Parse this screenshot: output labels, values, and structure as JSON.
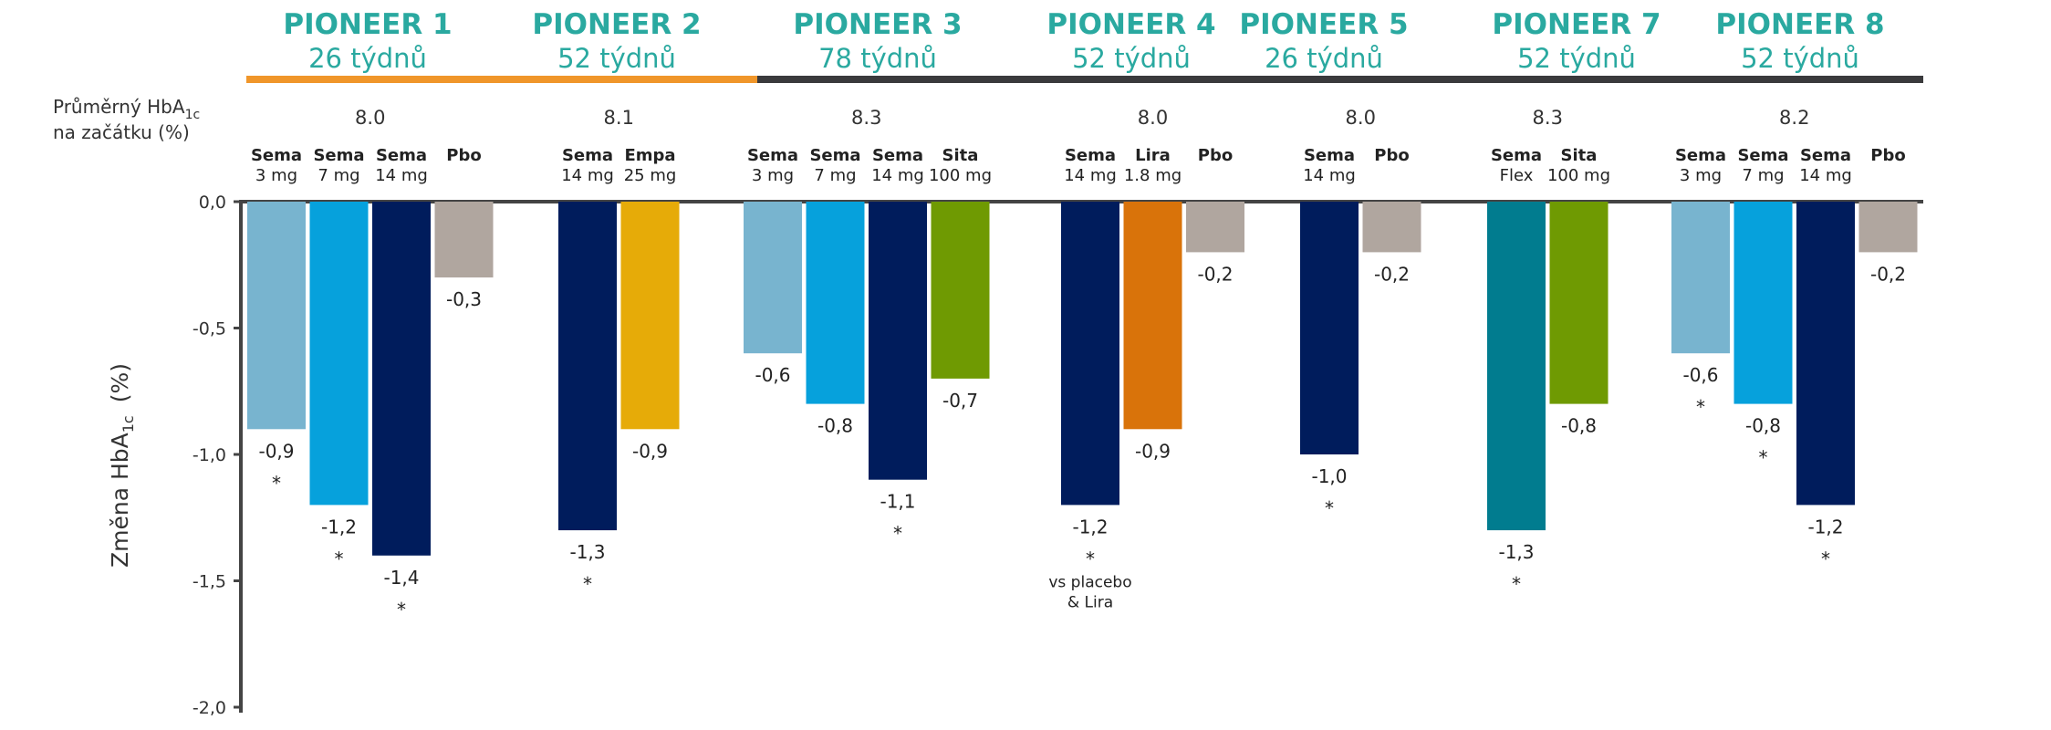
{
  "chart_data": {
    "type": "bar",
    "title": "",
    "xlabel": "",
    "ylabel": "Změna HbA1c (%)",
    "ylabel_parts": {
      "main": "Změna HbA",
      "sub": "1c",
      "unit": "(%)"
    },
    "ylim": [
      -2.0,
      0.0
    ],
    "yticks": [
      0.0,
      -0.5,
      -1.0,
      -1.5,
      -2.0
    ],
    "ytick_labels": [
      "0,0",
      "-0,5",
      "-1,0",
      "-1,5",
      "-2,0"
    ],
    "baseline_label": {
      "line1_main": "Průměrný HbA",
      "line1_sub": "1c",
      "line2": "na začátku (%)"
    },
    "colors": {
      "title": "#2aa9a0",
      "orange_bar": "#f0962a",
      "dark_bar": "#3a3a3c",
      "sema3": "#78b4cf",
      "sema7": "#06a1dc",
      "sema14": "#001c5c",
      "pbo": "#b0a69f",
      "empa": "#e6ab08",
      "sita": "#6f9a02",
      "lira": "#d9730a",
      "flex": "#017c8f"
    },
    "groups": [
      {
        "title": "PIONEER 1",
        "duration": "26 týdnů",
        "baseline": "8.0",
        "note": "",
        "arms": [
          {
            "name": "Sema",
            "dose": "3 mg",
            "value": -0.9,
            "label": "-0,9",
            "sig": "*",
            "color": "sema3"
          },
          {
            "name": "Sema",
            "dose": "7 mg",
            "value": -1.2,
            "label": "-1,2",
            "sig": "*",
            "color": "sema7"
          },
          {
            "name": "Sema",
            "dose": "14 mg",
            "value": -1.4,
            "label": "-1,4",
            "sig": "*",
            "color": "sema14"
          },
          {
            "name": "Pbo",
            "dose": "",
            "value": -0.3,
            "label": "-0,3",
            "sig": "",
            "color": "pbo"
          }
        ]
      },
      {
        "title": "PIONEER 2",
        "duration": "52 týdnů",
        "baseline": "8.1",
        "note": "",
        "arms": [
          {
            "name": "Sema",
            "dose": "14 mg",
            "value": -1.3,
            "label": "-1,3",
            "sig": "*",
            "color": "sema14"
          },
          {
            "name": "Empa",
            "dose": "25 mg",
            "value": -0.9,
            "label": "-0,9",
            "sig": "",
            "color": "empa"
          }
        ]
      },
      {
        "title": "PIONEER 3",
        "duration": "78 týdnů",
        "baseline": "8.3",
        "note": "",
        "arms": [
          {
            "name": "Sema",
            "dose": "3 mg",
            "value": -0.6,
            "label": "-0,6",
            "sig": "",
            "color": "sema3"
          },
          {
            "name": "Sema",
            "dose": "7 mg",
            "value": -0.8,
            "label": "-0,8",
            "sig": "",
            "color": "sema7"
          },
          {
            "name": "Sema",
            "dose": "14 mg",
            "value": -1.1,
            "label": "-1,1",
            "sig": "*",
            "color": "sema14"
          },
          {
            "name": "Sita",
            "dose": "100 mg",
            "value": -0.7,
            "label": "-0,7",
            "sig": "",
            "color": "sita"
          }
        ]
      },
      {
        "title": "PIONEER 4",
        "duration": "52 týdnů",
        "baseline": "8.0",
        "note": "vs placebo\n& Lira",
        "arms": [
          {
            "name": "Sema",
            "dose": "14 mg",
            "value": -1.2,
            "label": "-1,2",
            "sig": "*",
            "color": "sema14"
          },
          {
            "name": "Lira",
            "dose": "1.8 mg",
            "value": -0.9,
            "label": "-0,9",
            "sig": "",
            "color": "lira"
          },
          {
            "name": "Pbo",
            "dose": "",
            "value": -0.2,
            "label": "-0,2",
            "sig": "",
            "color": "pbo"
          }
        ]
      },
      {
        "title": "PIONEER 5",
        "duration": "26 týdnů",
        "baseline": "8.0",
        "note": "",
        "arms": [
          {
            "name": "Sema",
            "dose": "14 mg",
            "value": -1.0,
            "label": "-1,0",
            "sig": "*",
            "color": "sema14"
          },
          {
            "name": "Pbo",
            "dose": "",
            "value": -0.2,
            "label": "-0,2",
            "sig": "",
            "color": "pbo"
          }
        ]
      },
      {
        "title": "PIONEER 7",
        "duration": "52 týdnů",
        "baseline": "8.3",
        "note": "",
        "arms": [
          {
            "name": "Sema",
            "dose": "Flex",
            "value": -1.3,
            "label": "-1,3",
            "sig": "*",
            "color": "flex"
          },
          {
            "name": "Sita",
            "dose": "100 mg",
            "value": -0.8,
            "label": "-0,8",
            "sig": "",
            "color": "sita"
          }
        ]
      },
      {
        "title": "PIONEER 8",
        "duration": "52 týdnů",
        "baseline": "8.2",
        "note": "",
        "arms": [
          {
            "name": "Sema",
            "dose": "3 mg",
            "value": -0.6,
            "label": "-0,6",
            "sig": "*",
            "color": "sema3"
          },
          {
            "name": "Sema",
            "dose": "7 mg",
            "value": -0.8,
            "label": "-0,8",
            "sig": "*",
            "color": "sema7"
          },
          {
            "name": "Sema",
            "dose": "14 mg",
            "value": -1.2,
            "label": "-1,2",
            "sig": "*",
            "color": "sema14"
          },
          {
            "name": "Pbo",
            "dose": "",
            "value": -0.2,
            "label": "-0,2",
            "sig": "",
            "color": "pbo"
          }
        ]
      }
    ]
  }
}
